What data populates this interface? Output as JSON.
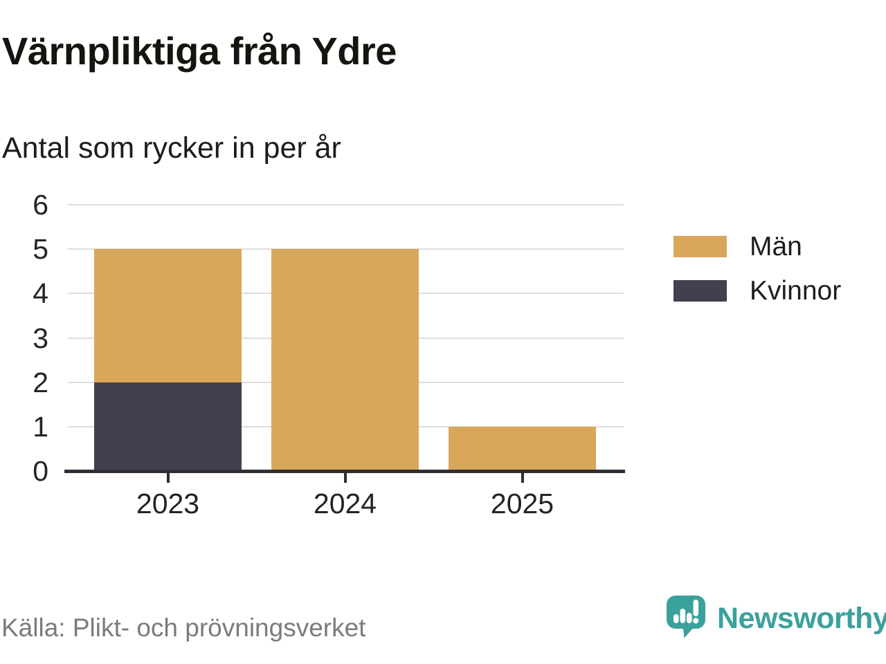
{
  "header": {
    "title": "Värnpliktiga från Ydre",
    "subtitle": "Antal som rycker in per år"
  },
  "chart_data": {
    "type": "bar",
    "stacked": true,
    "title": "Värnpliktiga från Ydre",
    "subtitle": "Antal som rycker in per år",
    "categories": [
      "2023",
      "2024",
      "2025"
    ],
    "series": [
      {
        "name": "Män",
        "color": "#d8a75a",
        "values": [
          3,
          5,
          1
        ]
      },
      {
        "name": "Kvinnor",
        "color": "#423f4e",
        "values": [
          2,
          0,
          0
        ]
      }
    ],
    "stack_order_bottom_to_top": [
      "Kvinnor",
      "Män"
    ],
    "totals": [
      5,
      5,
      1
    ],
    "ylim": [
      0,
      6
    ],
    "yticks": [
      0,
      1,
      2,
      3,
      4,
      5,
      6
    ],
    "grid": "horizontal",
    "gridline_color": "#dddddd",
    "axis_color": "#2e2d35",
    "legend_position": "right"
  },
  "footer": {
    "source": "Källa: Plikt- och prövningsverket",
    "brand": "Newsworthy",
    "brand_color": "#3ba19c"
  }
}
